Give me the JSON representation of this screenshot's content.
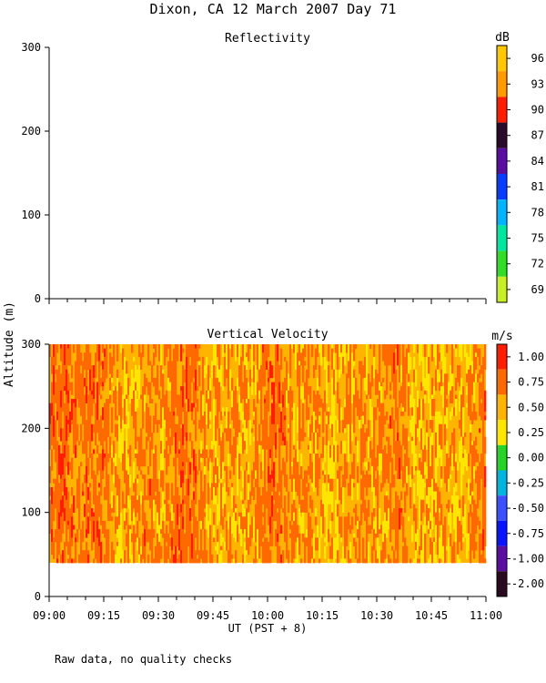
{
  "figure": {
    "title": "Dixon, CA 12 March 2007  Day  71",
    "y_axis_label": "Altitude (m)",
    "x_axis_label": "UT  (PST + 8)",
    "footnote": "Raw data, no quality checks"
  },
  "chart_data": [
    {
      "type": "heatmap",
      "title": "Reflectivity",
      "xlabel": "",
      "ylabel": "Altitude (m)",
      "xlim": [
        "09:00",
        "11:00"
      ],
      "ylim": [
        0,
        300
      ],
      "y_ticks": [
        "0",
        "100",
        "200",
        "300"
      ],
      "values": [],
      "colorbar": {
        "unit": "dB",
        "levels": [
          "96",
          "93",
          "90",
          "87",
          "84",
          "81",
          "78",
          "75",
          "72",
          "69"
        ],
        "colors": [
          "#ffc800",
          "#ff9a00",
          "#ff1e00",
          "#2a0a2a",
          "#5a0ea0",
          "#0a3cff",
          "#00b4ff",
          "#00e6a0",
          "#32dc28",
          "#c8f028"
        ]
      }
    },
    {
      "type": "heatmap",
      "title": "Vertical Velocity",
      "xlabel": "UT  (PST + 8)",
      "ylabel": "Altitude (m)",
      "xlim": [
        "09:00",
        "11:00"
      ],
      "ylim": [
        0,
        300
      ],
      "x_ticks": [
        "09:00",
        "09:15",
        "09:30",
        "09:45",
        "10:00",
        "10:15",
        "10:30",
        "10:45",
        "11:00"
      ],
      "y_ticks": [
        "0",
        "100",
        "200",
        "300"
      ],
      "data_altitude_range_m": [
        40,
        300
      ],
      "values_note_level_mix": {
        "0.25": 0.01,
        "0.50": 0.38,
        "0.75": 0.44,
        "1.00": 0.17
      },
      "colorbar": {
        "unit": "m/s",
        "levels": [
          "1.00",
          "0.75",
          "0.50",
          "0.25",
          "0.00",
          "-0.25",
          "-0.50",
          "-0.75",
          "-1.00",
          "-2.00"
        ],
        "colors": [
          "#ff1e00",
          "#ff6a00",
          "#ffb400",
          "#ffe600",
          "#28d228",
          "#00b4dc",
          "#3c50ff",
          "#0a14ff",
          "#5a0ea0",
          "#2a0a1e"
        ]
      }
    }
  ]
}
